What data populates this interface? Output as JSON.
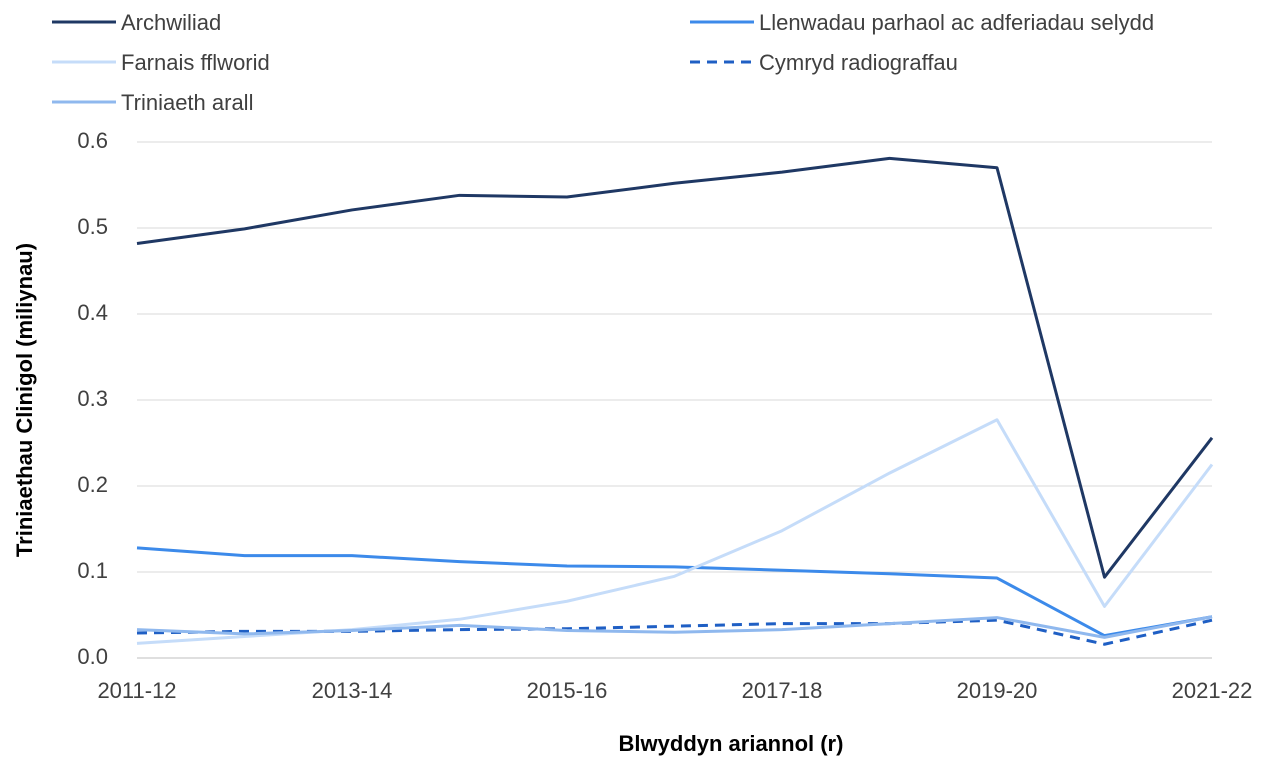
{
  "chart_data": {
    "type": "line",
    "y_label": "Triniaethau Clinigol (miliynau)",
    "x_label": "Blwyddyn ariannol (r)",
    "categories": [
      "2011-12",
      null,
      "2013-14",
      null,
      "2015-16",
      null,
      "2017-18",
      null,
      "2019-20",
      null,
      "2021-22"
    ],
    "series": [
      {
        "name": "Archwiliad",
        "color": "#1f3864",
        "values": [
          0.482,
          0.499,
          0.521,
          0.538,
          0.536,
          0.552,
          0.565,
          0.581,
          0.57,
          0.094,
          0.256
        ]
      },
      {
        "name": "Llenwadau parhaol ac adferiadau selydd",
        "color": "#3c8aea",
        "values": [
          0.128,
          0.119,
          0.119,
          0.112,
          0.107,
          0.106,
          0.102,
          0.098,
          0.093,
          0.026,
          0.048
        ]
      },
      {
        "name": "Farnais fflworid",
        "color": "#c5dcf9",
        "values": [
          0.017,
          0.025,
          0.033,
          0.045,
          0.066,
          0.095,
          0.148,
          0.215,
          0.277,
          0.06,
          0.225
        ]
      },
      {
        "name": "Cymryd radiograffau",
        "color": "#1f5fc4",
        "dashed": true,
        "values": [
          0.029,
          0.031,
          0.031,
          0.033,
          0.034,
          0.037,
          0.04,
          0.04,
          0.044,
          0.016,
          0.044
        ]
      },
      {
        "name": "Triniaeth arall",
        "color": "#8fb8ee",
        "values": [
          0.033,
          0.028,
          0.032,
          0.038,
          0.032,
          0.03,
          0.033,
          0.04,
          0.047,
          0.024,
          0.048
        ]
      }
    ],
    "ylim": [
      0,
      0.6
    ],
    "yticks": [
      {
        "value": 0,
        "label": "0.0"
      },
      0.1,
      0.2,
      0.3,
      0.4,
      0.5,
      0.6
    ],
    "grid": true,
    "legend": "top"
  }
}
